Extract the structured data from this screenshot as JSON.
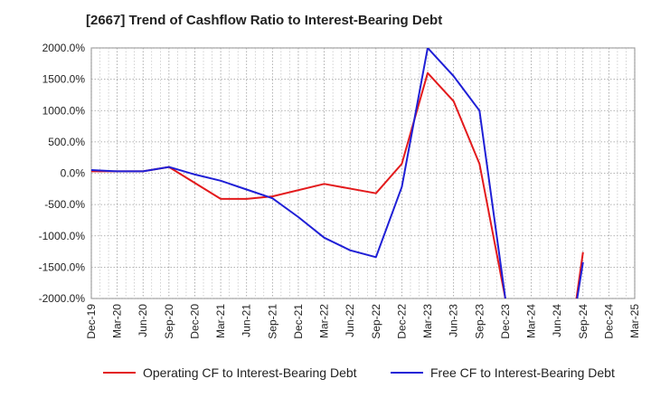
{
  "title": "[2667]  Trend of Cashflow Ratio to Interest-Bearing Debt",
  "colors": {
    "operating": "#e31a1c",
    "free": "#1f1fd6"
  },
  "chart_data": {
    "type": "line",
    "title": "[2667]  Trend of Cashflow Ratio to Interest-Bearing Debt",
    "x": [
      "Dec-19",
      "Mar-20",
      "Jun-20",
      "Sep-20",
      "Dec-20",
      "Mar-21",
      "Jun-21",
      "Sep-21",
      "Dec-21",
      "Mar-22",
      "Jun-22",
      "Sep-22",
      "Dec-22",
      "Mar-23",
      "Jun-23",
      "Sep-23",
      "Dec-23",
      "Mar-24",
      "Jun-24",
      "Sep-24",
      "Dec-24",
      "Mar-25"
    ],
    "x_tick_labels": [
      "Dec-19",
      "Mar-20",
      "Jun-20",
      "Sep-20",
      "Dec-20",
      "Mar-21",
      "Jun-21",
      "Sep-21",
      "Dec-21",
      "Mar-22",
      "Jun-22",
      "Sep-22",
      "Dec-22",
      "Mar-23",
      "Jun-23",
      "Sep-23",
      "Dec-23",
      "Mar-24",
      "Jun-24",
      "Sep-24",
      "Dec-24",
      "Mar-25"
    ],
    "y_tick_labels": [
      "2000.0%",
      "1500.0%",
      "1000.0%",
      "500.0%",
      "0.0%",
      "-500.0%",
      "-1000.0%",
      "-1500.0%",
      "-2000.0%"
    ],
    "ylim": [
      -2000,
      2000
    ],
    "grid": true,
    "legend_position": "bottom",
    "series": [
      {
        "name": "Operating CF to Interest-Bearing Debt",
        "color": "#e31a1c",
        "points": [
          [
            "Dec-19",
            30
          ],
          [
            "Mar-20",
            30
          ],
          [
            "Jun-20",
            30
          ],
          [
            "Sep-20",
            100
          ],
          [
            "Mar-21",
            -410
          ],
          [
            "Jun-21",
            -410
          ],
          [
            "Sep-21",
            -370
          ],
          [
            "Mar-22",
            -170
          ],
          [
            "Sep-22",
            -320
          ],
          [
            "Dec-22",
            150
          ],
          [
            "Mar-23",
            1600
          ],
          [
            "Jun-23",
            1150
          ],
          [
            "Sep-23",
            150
          ],
          [
            "Dec-23",
            -2000
          ],
          [
            "Sep-24",
            -1260
          ]
        ],
        "gaps_after": [
          "Dec-23"
        ]
      },
      {
        "name": "Free CF to Interest-Bearing Debt",
        "color": "#1f1fd6",
        "points": [
          [
            "Dec-19",
            50
          ],
          [
            "Mar-20",
            30
          ],
          [
            "Jun-20",
            30
          ],
          [
            "Sep-20",
            100
          ],
          [
            "Dec-20",
            -20
          ],
          [
            "Mar-21",
            -120
          ],
          [
            "Jun-21",
            -260
          ],
          [
            "Sep-21",
            -400
          ],
          [
            "Dec-21",
            -700
          ],
          [
            "Mar-22",
            -1030
          ],
          [
            "Jun-22",
            -1230
          ],
          [
            "Sep-22",
            -1340
          ],
          [
            "Dec-22",
            -220
          ],
          [
            "Mar-23",
            2000
          ],
          [
            "Jun-23",
            1550
          ],
          [
            "Sep-23",
            1000
          ],
          [
            "Dec-23",
            -2000
          ],
          [
            "Sep-24",
            -1420
          ]
        ],
        "gaps_after": [
          "Dec-23"
        ]
      }
    ]
  },
  "legend": {
    "operating_label": "Operating CF to Interest-Bearing Debt",
    "free_label": "Free CF to Interest-Bearing Debt"
  }
}
